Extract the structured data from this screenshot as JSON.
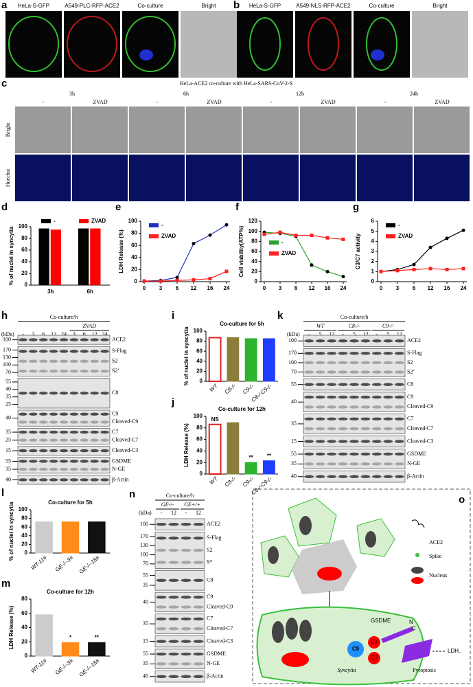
{
  "panel_labels": [
    "a",
    "b",
    "c",
    "d",
    "e",
    "f",
    "g",
    "h",
    "i",
    "j",
    "k",
    "l",
    "m",
    "n",
    "o"
  ],
  "a": {
    "channels": [
      "HeLa-S-GFP",
      "A549-PLC-RFP-ACE2",
      "Co-culture",
      "Bright"
    ]
  },
  "b": {
    "channels": [
      "HeLa-S-GFP",
      "A549-NLS-RFP-ACE2",
      "Co-culture",
      "Bright"
    ]
  },
  "c": {
    "title": "HeLa-ACE2 co-culture with HeLa-SARS-CoV-2-S",
    "times": [
      "3h",
      "6h",
      "12h",
      "24h"
    ],
    "conditions": [
      "-",
      "ZVAD",
      "-",
      "ZVAD",
      "-",
      "ZVAD",
      "-",
      "ZVAD"
    ],
    "rows": [
      "Bright",
      "Hoechst"
    ]
  },
  "chart_data": [
    {
      "type": "bar",
      "ylabel": "% of nuclei in syncytia",
      "categories": [
        "3h",
        "6h"
      ],
      "series": [
        {
          "name": "-",
          "color": "#000000",
          "values": [
            97,
            97
          ]
        },
        {
          "name": "ZVAD",
          "color": "#ff0000",
          "values": [
            95,
            97
          ]
        }
      ],
      "ylim": [
        0,
        100
      ],
      "yticks": [
        0,
        20,
        40,
        60,
        80,
        100
      ]
    },
    {
      "type": "line",
      "ylabel": "LDH Release (%)",
      "categories": [
        "0",
        "3",
        "6",
        "12",
        "16",
        "24"
      ],
      "series": [
        {
          "name": "-",
          "color": "#1f2fbf",
          "values": [
            1,
            2,
            7,
            63,
            77,
            94
          ]
        },
        {
          "name": "ZVAD",
          "color": "#ff2020",
          "values": [
            1,
            1,
            2,
            3,
            5,
            17
          ]
        }
      ],
      "ylim": [
        0,
        100
      ],
      "yticks": [
        0,
        20,
        40,
        60,
        80,
        100
      ]
    },
    {
      "type": "line",
      "ylabel": "Cell viability(ATP%)",
      "categories": [
        "0",
        "3",
        "6",
        "12",
        "16",
        "24"
      ],
      "series": [
        {
          "name": "-",
          "color": "#2ca02c",
          "values": [
            98,
            96,
            90,
            33,
            20,
            10
          ]
        },
        {
          "name": "ZVAD",
          "color": "#ff2020",
          "values": [
            94,
            98,
            92,
            92,
            87,
            84
          ]
        }
      ],
      "ylim": [
        0,
        120
      ],
      "yticks": [
        0,
        20,
        40,
        60,
        80,
        100,
        120
      ]
    },
    {
      "type": "line",
      "ylabel": "C3/C7 activity",
      "categories": [
        "0",
        "3",
        "6",
        "12",
        "16",
        "24"
      ],
      "series": [
        {
          "name": "-",
          "color": "#000000",
          "values": [
            1,
            1.2,
            1.7,
            3.4,
            4.3,
            5.1
          ]
        },
        {
          "name": "ZVAD",
          "color": "#ff2020",
          "values": [
            1,
            1.1,
            1.2,
            1.3,
            1.2,
            1.3
          ]
        }
      ],
      "ylim": [
        0,
        6
      ],
      "yticks": [
        0,
        1,
        2,
        3,
        4,
        5,
        6
      ]
    },
    {
      "type": "bar",
      "title": "Co-culture for 5h",
      "ylabel": "% of nuclei in syncytia",
      "categories": [
        "WT",
        "C8-/-",
        "C9-/-",
        "C8-/-C9-/-"
      ],
      "values": [
        87,
        87,
        85,
        85
      ],
      "colors": [
        "#ffffff",
        "#8b7d3a",
        "#2cb52c",
        "#1f3cff"
      ],
      "ylim": [
        0,
        100
      ],
      "yticks": [
        0,
        20,
        40,
        60,
        80,
        100
      ]
    },
    {
      "type": "bar",
      "title": "Co-culture for 12h",
      "ylabel": "LDH Release (%)",
      "categories": [
        "WT",
        "C8-/-",
        "C9-/-",
        "C8-/-C9-/-"
      ],
      "values": [
        86,
        89,
        20,
        23
      ],
      "colors": [
        "#ffffff",
        "#8b7d3a",
        "#2cb52c",
        "#1f3cff"
      ],
      "annotations": [
        "NS",
        null,
        "**",
        "**"
      ],
      "ylim": [
        0,
        100
      ],
      "yticks": [
        0,
        20,
        40,
        60,
        80,
        100
      ]
    },
    {
      "type": "bar",
      "title": "Co-culture for 5h",
      "ylabel": "% of nuclei in syncytia",
      "categories": [
        "WT-11#",
        "GE-/--3#",
        "GE-/--15#"
      ],
      "values": [
        72,
        72,
        72
      ],
      "colors": [
        "#cccccc",
        "#ff8c1a",
        "#111111"
      ],
      "ylim": [
        0,
        100
      ],
      "yticks": [
        0,
        20,
        40,
        60,
        80,
        100
      ]
    },
    {
      "type": "bar",
      "title": "Co-culture for 12h",
      "ylabel": "LDH Release (%)",
      "categories": [
        "WT-11#",
        "GE-/--3#",
        "GE-/--15#"
      ],
      "values": [
        58,
        19,
        19
      ],
      "colors": [
        "#cccccc",
        "#ff8c1a",
        "#111111"
      ],
      "annotations": [
        null,
        "*",
        "**"
      ],
      "ylim": [
        0,
        80
      ],
      "yticks": [
        0,
        20,
        40,
        60,
        80
      ]
    }
  ],
  "blots": {
    "h": {
      "header": "Co-culture/h",
      "unit": "(kDa)",
      "groups": [
        "ZVAD"
      ],
      "lanes": [
        "-",
        "3",
        "6",
        "12",
        "24",
        "3",
        "6",
        "12",
        "24"
      ],
      "blocks": [
        {
          "markers": [
            "100"
          ],
          "labels": [
            "ACE2"
          ]
        },
        {
          "markers": [
            "170",
            "130",
            "100",
            "70"
          ],
          "labels": [
            "S-Flag",
            "S2",
            "S2'"
          ]
        },
        {
          "markers": [
            "55",
            "40",
            "35",
            "25"
          ],
          "labels": [
            "C8"
          ]
        },
        {
          "markers": [
            "40"
          ],
          "labels": [
            "C9",
            "Cleaved-C9"
          ]
        },
        {
          "markers": [
            "35",
            "25"
          ],
          "labels": [
            "C7",
            "Cleaved-C7"
          ]
        },
        {
          "markers": [
            "15"
          ],
          "labels": [
            "Cleaved-C3"
          ]
        },
        {
          "markers": [
            "55",
            "35"
          ],
          "labels": [
            "GSDME",
            "N-GE"
          ]
        },
        {
          "markers": [
            "40"
          ],
          "labels": [
            "β-Actin"
          ]
        }
      ]
    },
    "k": {
      "header": "Co-culture/h",
      "unit": "(kDa)",
      "groups": [
        "WT",
        "C8-/-",
        "C9-/-"
      ],
      "lanes": [
        "-",
        "5",
        "12",
        "-",
        "5",
        "12",
        "-",
        "5",
        "12"
      ],
      "blocks": [
        {
          "markers": [
            "100"
          ],
          "labels": [
            "ACE2"
          ]
        },
        {
          "markers": [
            "170",
            "100",
            "70"
          ],
          "labels": [
            "S-Flag",
            "S2",
            "S2'"
          ]
        },
        {
          "markers": [
            "55"
          ],
          "labels": [
            "C8"
          ]
        },
        {
          "markers": [
            "40"
          ],
          "labels": [
            "C9",
            "Cleaved-C9"
          ]
        },
        {
          "markers": [
            "35"
          ],
          "labels": [
            "C7",
            "Cleaved-C7"
          ]
        },
        {
          "markers": [
            "15"
          ],
          "labels": [
            "Cleaved-C3"
          ]
        },
        {
          "markers": [
            "55",
            "35"
          ],
          "labels": [
            "GSDME",
            "N-GE"
          ]
        },
        {
          "markers": [
            "40"
          ],
          "labels": [
            "β-Actin"
          ]
        }
      ]
    },
    "n": {
      "header": "Co-culture/h",
      "unit": "(kDa)",
      "groups": [
        "GE-/-",
        "GE+/+"
      ],
      "lanes": [
        "-",
        "12",
        "-",
        "12"
      ],
      "blocks": [
        {
          "markers": [
            "100"
          ],
          "labels": [
            "ACE2"
          ]
        },
        {
          "markers": [
            "170",
            "130",
            "100",
            "70"
          ],
          "labels": [
            "S-Flag",
            "S2",
            "S*"
          ]
        },
        {
          "markers": [
            "55",
            "35"
          ],
          "labels": [
            "C8"
          ]
        },
        {
          "markers": [
            "40"
          ],
          "labels": [
            "C9",
            "Cleaved-C9"
          ]
        },
        {
          "markers": [
            "35"
          ],
          "labels": [
            "C7",
            "Cleaved-C7"
          ]
        },
        {
          "markers": [
            "15"
          ],
          "labels": [
            "Cleaved-C3"
          ]
        },
        {
          "markers": [
            "55",
            "35"
          ],
          "labels": [
            "GSDME",
            "N-GE"
          ]
        },
        {
          "markers": [
            "40"
          ],
          "labels": [
            "β-Actin"
          ]
        }
      ]
    }
  },
  "o": {
    "legend": [
      "ACE2",
      "Spike",
      "Nucleus"
    ],
    "gsdme": "GSDME",
    "n_term": "N",
    "c_term": "C",
    "c9": "C9",
    "c3": [
      "C3",
      "C3"
    ],
    "syncytia": "Syncytia",
    "pyroptosis": "Pyroptosis",
    "ldh": "LDH.."
  }
}
